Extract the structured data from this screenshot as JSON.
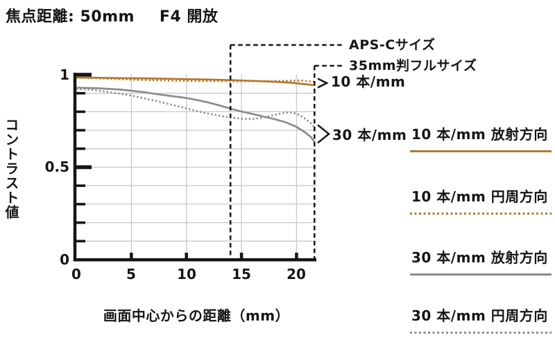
{
  "header": {
    "focal_length_label": "焦点距離: 50mm",
    "aperture_label": "F4 開放"
  },
  "colors": {
    "ink": "#151515",
    "accent_orange": "#b5782e",
    "curve_gray": "#8b8b8b",
    "grid": "#c8c8c8"
  },
  "chart_data": {
    "type": "line",
    "title": "MTF 焦点距離: 50mm F4 開放",
    "xlabel": "画面中心からの距離（mm）",
    "ylabel": "コントラスト値",
    "xlim": [
      0,
      21.63
    ],
    "ylim": [
      0,
      1
    ],
    "grid": true,
    "legend_position": "right",
    "x_ticks": [
      5,
      10,
      15,
      20
    ],
    "x_tick_labels": [
      "0",
      "5",
      "10",
      "15",
      "20"
    ],
    "y_tick_labels": [
      "1",
      "0.5",
      "0"
    ],
    "y_major_ticks": [
      0.5,
      1
    ],
    "y_minor_ticks": [
      0.1,
      0.2,
      0.3,
      0.4,
      0.6,
      0.7,
      0.8,
      0.9
    ],
    "y_gridlines": [
      0.1,
      0.2,
      0.3,
      0.4,
      0.5,
      0.6,
      0.7,
      0.8,
      0.9
    ],
    "reference_lines": [
      {
        "label": "APS-Cサイズ",
        "x": 14.0
      },
      {
        "label": "35mm判フルサイズ",
        "x": 21.63
      }
    ],
    "annotations": [
      {
        "label": "10 本/mm",
        "y": 0.955
      },
      {
        "label": "30 本/mm",
        "y": 0.68
      }
    ],
    "series": [
      {
        "name": "10 本/mm 放射方向",
        "color": "#b5782e",
        "style": "solid",
        "points": [
          [
            0,
            0.985
          ],
          [
            2,
            0.984
          ],
          [
            4,
            0.982
          ],
          [
            6,
            0.981
          ],
          [
            8,
            0.979
          ],
          [
            10,
            0.976
          ],
          [
            12,
            0.974
          ],
          [
            14,
            0.971
          ],
          [
            16,
            0.967
          ],
          [
            18,
            0.962
          ],
          [
            19.5,
            0.957
          ],
          [
            20.5,
            0.951
          ],
          [
            21.63,
            0.944
          ]
        ]
      },
      {
        "name": "10 本/mm 円周方向",
        "color": "#b5782e",
        "style": "dotted",
        "points": [
          [
            0,
            0.985
          ],
          [
            2,
            0.981
          ],
          [
            4,
            0.976
          ],
          [
            6,
            0.972
          ],
          [
            8,
            0.969
          ],
          [
            10,
            0.967
          ],
          [
            12,
            0.966
          ],
          [
            14,
            0.965
          ],
          [
            16,
            0.965
          ],
          [
            18,
            0.966
          ],
          [
            19.5,
            0.968
          ],
          [
            20.6,
            0.968
          ],
          [
            21.63,
            0.962
          ]
        ]
      },
      {
        "name": "30 本/mm 放射方向",
        "color": "#8b8b8b",
        "style": "solid",
        "points": [
          [
            0,
            0.93
          ],
          [
            2,
            0.927
          ],
          [
            4,
            0.92
          ],
          [
            5,
            0.914
          ],
          [
            6,
            0.907
          ],
          [
            7,
            0.898
          ],
          [
            8,
            0.89
          ],
          [
            9,
            0.882
          ],
          [
            10,
            0.874
          ],
          [
            11,
            0.863
          ],
          [
            12,
            0.85
          ],
          [
            13,
            0.834
          ],
          [
            14,
            0.817
          ],
          [
            15,
            0.801
          ],
          [
            16,
            0.788
          ],
          [
            17,
            0.774
          ],
          [
            18,
            0.76
          ],
          [
            19,
            0.743
          ],
          [
            20,
            0.718
          ],
          [
            20.8,
            0.688
          ],
          [
            21.3,
            0.663
          ],
          [
            21.63,
            0.637
          ]
        ]
      },
      {
        "name": "30 本/mm 円周方向",
        "color": "#8b8b8b",
        "style": "dotted",
        "points": [
          [
            0,
            0.924
          ],
          [
            1.5,
            0.918
          ],
          [
            3,
            0.906
          ],
          [
            4.5,
            0.893
          ],
          [
            6,
            0.875
          ],
          [
            7.5,
            0.855
          ],
          [
            9,
            0.833
          ],
          [
            10.5,
            0.81
          ],
          [
            11.5,
            0.796
          ],
          [
            12.5,
            0.784
          ],
          [
            13.5,
            0.773
          ],
          [
            14.5,
            0.765
          ],
          [
            15.5,
            0.76
          ],
          [
            16.3,
            0.762
          ],
          [
            17,
            0.769
          ],
          [
            18,
            0.783
          ],
          [
            18.8,
            0.793
          ],
          [
            19.4,
            0.797
          ],
          [
            20,
            0.79
          ],
          [
            20.6,
            0.77
          ],
          [
            21.2,
            0.744
          ],
          [
            21.63,
            0.716
          ]
        ]
      }
    ]
  }
}
